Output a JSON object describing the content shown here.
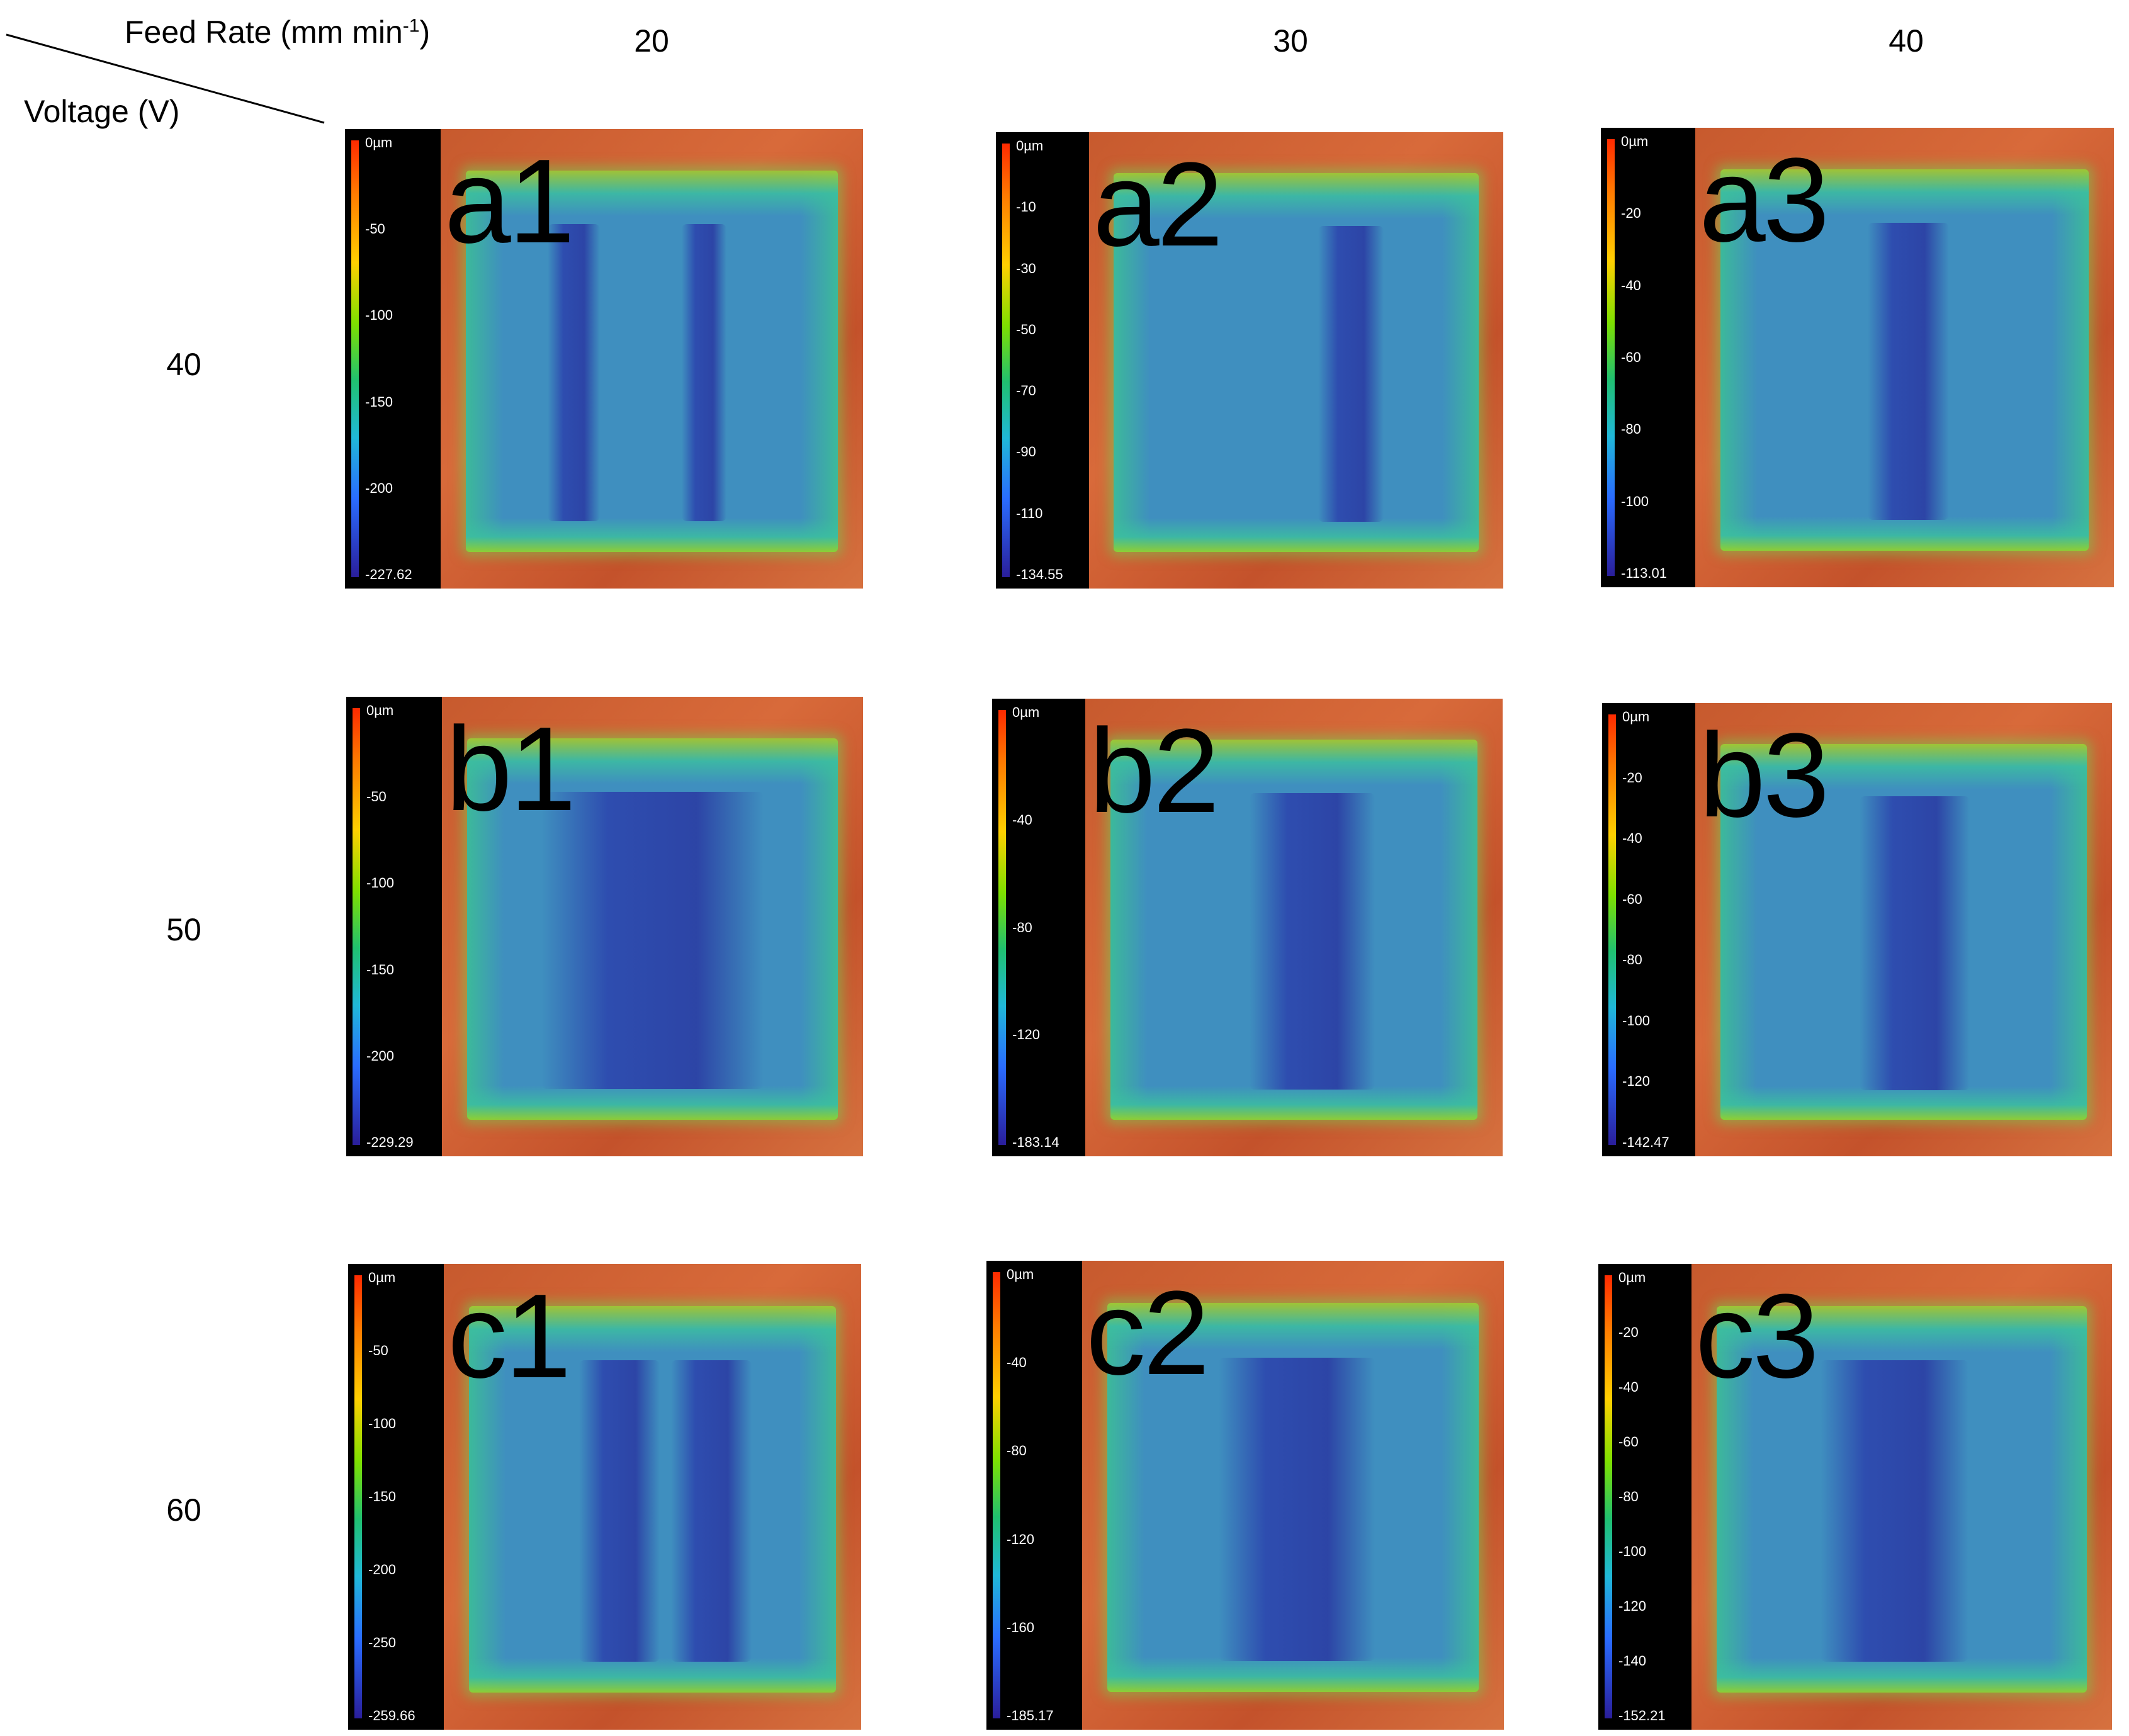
{
  "header": {
    "feed_rate_label": "Feed Rate (mm min",
    "feed_rate_exp": "-1",
    "feed_rate_close": ")",
    "voltage_label": "Voltage (V)"
  },
  "columns": [
    "20",
    "30",
    "40"
  ],
  "rows": [
    "40",
    "50",
    "60"
  ],
  "panels": [
    {
      "label": "a1",
      "ticks": [
        "0µm",
        "-50",
        "-100",
        "-150",
        "-200",
        "-227.62"
      ]
    },
    {
      "label": "a2",
      "ticks": [
        "0µm",
        "-10",
        "-30",
        "-50",
        "-70",
        "-90",
        "-110",
        "-134.55"
      ]
    },
    {
      "label": "a3",
      "ticks": [
        "0µm",
        "-20",
        "-40",
        "-60",
        "-80",
        "-100",
        "-113.01"
      ]
    },
    {
      "label": "b1",
      "ticks": [
        "0µm",
        "-50",
        "-100",
        "-150",
        "-200",
        "-229.29"
      ]
    },
    {
      "label": "b2",
      "ticks": [
        "0µm",
        "-40",
        "-80",
        "-120",
        "-183.14"
      ]
    },
    {
      "label": "b3",
      "ticks": [
        "0µm",
        "-20",
        "-40",
        "-60",
        "-80",
        "-100",
        "-120",
        "-142.47"
      ]
    },
    {
      "label": "c1",
      "ticks": [
        "0µm",
        "-50",
        "-100",
        "-150",
        "-200",
        "-250",
        "-259.66"
      ]
    },
    {
      "label": "c2",
      "ticks": [
        "0µm",
        "-40",
        "-80",
        "-120",
        "-160",
        "-185.17"
      ]
    },
    {
      "label": "c3",
      "ticks": [
        "0µm",
        "-20",
        "-40",
        "-60",
        "-80",
        "-100",
        "-120",
        "-140",
        "-152.21"
      ]
    }
  ]
}
